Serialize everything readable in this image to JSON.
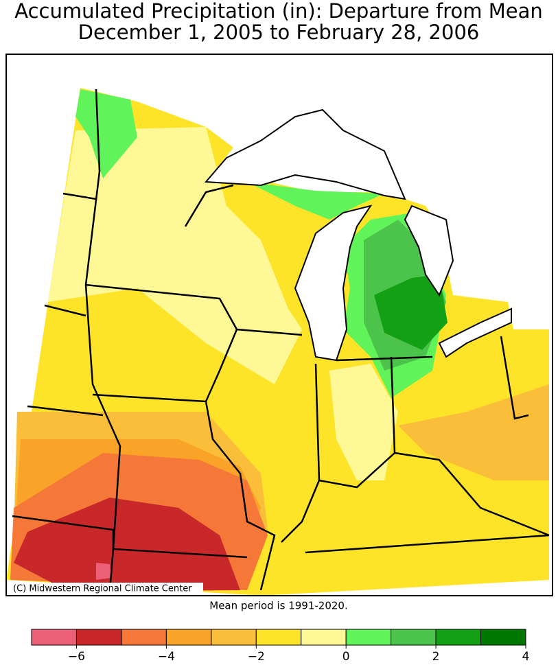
{
  "title": "Accumulated Precipitation (in): Departure from Mean",
  "subtitle": "December 1, 2005 to February 28, 2006",
  "credit": "(C) Midwestern Regional Climate Center",
  "note": "Mean period is 1991-2020.",
  "legend": {
    "bins": [
      -7,
      -6,
      -5,
      -4,
      -3,
      -2,
      -1,
      0,
      1,
      2,
      3,
      4
    ],
    "colors": [
      "#ee6078",
      "#c8282a",
      "#f57838",
      "#f9a428",
      "#fbbe3a",
      "#fde428",
      "#fef896",
      "#60f45a",
      "#4cc44c",
      "#14a014",
      "#007800"
    ],
    "ticks": [
      {
        "value": -6,
        "label": "−6"
      },
      {
        "value": -4,
        "label": "−4"
      },
      {
        "value": -2,
        "label": "−2"
      },
      0,
      2,
      4
    ]
  }
}
